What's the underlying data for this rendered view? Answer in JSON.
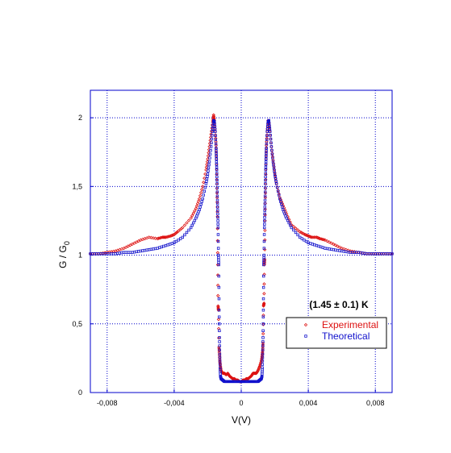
{
  "chart_data": {
    "type": "scatter",
    "title": "",
    "xlabel": "V(V)",
    "ylabel_main": "G / G",
    "ylabel_sub": "0",
    "xlim": [
      -0.009,
      0.009
    ],
    "ylim": [
      0,
      2.2
    ],
    "x_ticks": [
      -0.008,
      -0.004,
      0,
      0.004,
      0.008
    ],
    "x_tick_labels": [
      "-0,008",
      "-0,004",
      "0",
      "0,004",
      "0,008"
    ],
    "y_ticks": [
      0,
      0.5,
      1,
      1.5,
      2
    ],
    "y_tick_labels": [
      "0",
      "0,5",
      "1",
      "1,5",
      "2"
    ],
    "grid": true,
    "legend_position": "bottom-right",
    "annotation": "(1.45 ± 0.1) K",
    "series": [
      {
        "name": "Experimental",
        "color": "#dd1111",
        "marker": "diamond",
        "x": [
          -0.009,
          -0.0085,
          -0.008,
          -0.0075,
          -0.007,
          -0.0065,
          -0.006,
          -0.0055,
          -0.005,
          -0.0047,
          -0.0045,
          -0.0042,
          -0.004,
          -0.0038,
          -0.0035,
          -0.003,
          -0.0027,
          -0.0025,
          -0.0023,
          -0.0021,
          -0.002,
          -0.0019,
          -0.0018,
          -0.0017,
          -0.00165,
          -0.0016,
          -0.00155,
          -0.0015,
          -0.00148,
          -0.00146,
          -0.00144,
          -0.00142,
          -0.0014,
          -0.00138,
          -0.00136,
          -0.00133,
          -0.0013,
          -0.00128,
          -0.00125,
          -0.0012,
          -0.0011,
          -0.001,
          -0.0009,
          -0.0008,
          -0.0007,
          -0.0006,
          -0.0005,
          -0.0004,
          -0.0003,
          -0.0002,
          -0.0001,
          0,
          0.0001,
          0.0002,
          0.0003,
          0.0004,
          0.0005,
          0.0006,
          0.0007,
          0.0008,
          0.0009,
          0.001,
          0.0011,
          0.0012,
          0.00125,
          0.00128,
          0.0013,
          0.00133,
          0.00136,
          0.00138,
          0.0014,
          0.00142,
          0.00144,
          0.00146,
          0.00148,
          0.0015,
          0.00155,
          0.0016,
          0.00165,
          0.0017,
          0.0018,
          0.0019,
          0.002,
          0.0021,
          0.0023,
          0.0025,
          0.0027,
          0.003,
          0.0035,
          0.0038,
          0.004,
          0.0042,
          0.0045,
          0.0047,
          0.005,
          0.0055,
          0.006,
          0.0065,
          0.007,
          0.0075,
          0.008,
          0.0085,
          0.009
        ],
        "y": [
          1.01,
          1.01,
          1.02,
          1.03,
          1.05,
          1.08,
          1.11,
          1.13,
          1.12,
          1.13,
          1.13,
          1.14,
          1.15,
          1.17,
          1.2,
          1.27,
          1.34,
          1.41,
          1.5,
          1.62,
          1.7,
          1.79,
          1.88,
          1.97,
          2.02,
          1.98,
          1.9,
          1.8,
          1.7,
          1.55,
          1.42,
          1.28,
          0.93,
          0.63,
          0.6,
          0.33,
          0.28,
          0.23,
          0.2,
          0.16,
          0.14,
          0.14,
          0.13,
          0.14,
          0.12,
          0.11,
          0.1,
          0.1,
          0.09,
          0.09,
          0.08,
          0.08,
          0.09,
          0.09,
          0.1,
          0.1,
          0.11,
          0.12,
          0.14,
          0.14,
          0.14,
          0.16,
          0.19,
          0.23,
          0.27,
          0.31,
          0.36,
          0.63,
          0.65,
          0.93,
          0.97,
          1.25,
          1.42,
          1.55,
          1.7,
          1.8,
          1.9,
          1.98,
          1.96,
          1.9,
          1.79,
          1.69,
          1.6,
          1.52,
          1.42,
          1.36,
          1.3,
          1.22,
          1.17,
          1.15,
          1.14,
          1.13,
          1.13,
          1.12,
          1.11,
          1.08,
          1.05,
          1.03,
          1.02,
          1.01,
          1.01,
          1.01,
          1.01
        ]
      },
      {
        "name": "Theoretical",
        "color": "#1111cc",
        "marker": "square",
        "x": [
          -0.009,
          -0.0085,
          -0.008,
          -0.0075,
          -0.007,
          -0.0065,
          -0.006,
          -0.0055,
          -0.005,
          -0.0045,
          -0.004,
          -0.0035,
          -0.003,
          -0.0027,
          -0.0025,
          -0.0023,
          -0.0021,
          -0.002,
          -0.0019,
          -0.0018,
          -0.00172,
          -0.00165,
          -0.0016,
          -0.00155,
          -0.0015,
          -0.00148,
          -0.00146,
          -0.00144,
          -0.00142,
          -0.0014,
          -0.00138,
          -0.00136,
          -0.00134,
          -0.00132,
          -0.0013,
          -0.00128,
          -0.00126,
          -0.00124,
          -0.0012,
          -0.0011,
          -0.001,
          -0.0008,
          -0.0006,
          -0.0004,
          -0.0002,
          0,
          0.0002,
          0.0004,
          0.0006,
          0.0008,
          0.001,
          0.0011,
          0.0012,
          0.00124,
          0.00126,
          0.00128,
          0.0013,
          0.00132,
          0.00134,
          0.00136,
          0.00138,
          0.0014,
          0.00142,
          0.00144,
          0.00146,
          0.00148,
          0.0015,
          0.00155,
          0.0016,
          0.00165,
          0.00172,
          0.0018,
          0.0019,
          0.002,
          0.0021,
          0.0023,
          0.0025,
          0.0027,
          0.003,
          0.0035,
          0.004,
          0.0045,
          0.005,
          0.0055,
          0.006,
          0.0065,
          0.007,
          0.0075,
          0.008,
          0.0085,
          0.009
        ],
        "y": [
          1.01,
          1.01,
          1.01,
          1.01,
          1.02,
          1.02,
          1.03,
          1.04,
          1.05,
          1.07,
          1.09,
          1.13,
          1.2,
          1.27,
          1.33,
          1.41,
          1.52,
          1.59,
          1.68,
          1.79,
          1.9,
          1.98,
          1.97,
          1.9,
          1.78,
          1.7,
          1.62,
          1.52,
          1.4,
          1.3,
          1.2,
          1.0,
          0.93,
          0.6,
          0.4,
          0.28,
          0.18,
          0.12,
          0.1,
          0.09,
          0.08,
          0.08,
          0.08,
          0.08,
          0.08,
          0.08,
          0.08,
          0.08,
          0.08,
          0.08,
          0.08,
          0.09,
          0.1,
          0.12,
          0.18,
          0.28,
          0.4,
          0.6,
          0.93,
          1.0,
          1.2,
          1.3,
          1.4,
          1.52,
          1.62,
          1.7,
          1.78,
          1.9,
          1.97,
          1.98,
          1.9,
          1.79,
          1.68,
          1.59,
          1.52,
          1.41,
          1.33,
          1.27,
          1.2,
          1.13,
          1.09,
          1.07,
          1.05,
          1.04,
          1.03,
          1.02,
          1.02,
          1.01,
          1.01,
          1.01,
          1.01
        ]
      }
    ]
  }
}
